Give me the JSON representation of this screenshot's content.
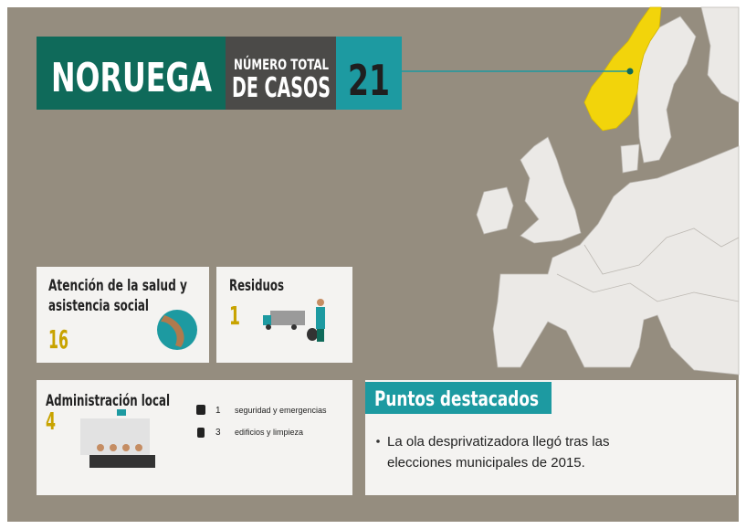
{
  "header": {
    "country": "NORUEGA",
    "total_line1": "NÚMERO TOTAL",
    "total_line2": "DE CASOS",
    "total": 21
  },
  "sectors": [
    {
      "name_line1": "Atención de la salud y",
      "name_line2": "asistencia social",
      "count": 16
    },
    {
      "name": "Residuos",
      "count": 1
    },
    {
      "name": "Administración local",
      "count": 4,
      "items": [
        {
          "count": 1,
          "label": "seguridad y emergencias"
        },
        {
          "count": 3,
          "label": "edificios y limpieza"
        }
      ]
    }
  ],
  "highlights": {
    "title": "Puntos destacados",
    "bullet_line1": "La ola desprivatizadora llegó tras las",
    "bullet_line2": "elecciones municipales de 2015."
  }
}
